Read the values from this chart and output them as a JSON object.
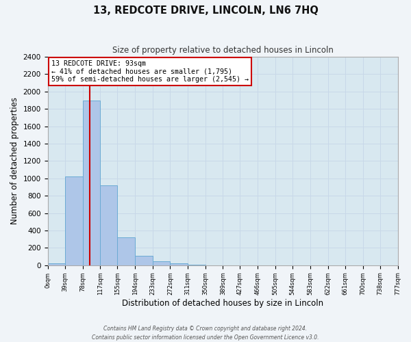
{
  "title": "13, REDCOTE DRIVE, LINCOLN, LN6 7HQ",
  "subtitle": "Size of property relative to detached houses in Lincoln",
  "xlabel": "Distribution of detached houses by size in Lincoln",
  "ylabel": "Number of detached properties",
  "bin_edges": [
    0,
    39,
    78,
    117,
    155,
    194,
    233,
    272,
    311,
    350,
    389,
    427,
    466,
    505,
    544,
    583,
    622,
    661,
    700,
    738,
    777
  ],
  "bin_labels": [
    "0sqm",
    "39sqm",
    "78sqm",
    "117sqm",
    "155sqm",
    "194sqm",
    "233sqm",
    "272sqm",
    "311sqm",
    "350sqm",
    "389sqm",
    "427sqm",
    "466sqm",
    "505sqm",
    "544sqm",
    "583sqm",
    "622sqm",
    "661sqm",
    "700sqm",
    "738sqm",
    "777sqm"
  ],
  "bar_heights": [
    20,
    1020,
    1900,
    920,
    320,
    105,
    45,
    20,
    5,
    0,
    0,
    0,
    0,
    0,
    0,
    0,
    0,
    0,
    0,
    0
  ],
  "bar_color": "#aec6e8",
  "bar_edge_color": "#6aaad4",
  "property_line_x": 93,
  "property_line_color": "#cc0000",
  "annotation_title": "13 REDCOTE DRIVE: 93sqm",
  "annotation_line1": "← 41% of detached houses are smaller (1,795)",
  "annotation_line2": "59% of semi-detached houses are larger (2,545) →",
  "annotation_box_facecolor": "#ffffff",
  "annotation_box_edgecolor": "#cc0000",
  "ylim": [
    0,
    2400
  ],
  "yticks": [
    0,
    200,
    400,
    600,
    800,
    1000,
    1200,
    1400,
    1600,
    1800,
    2000,
    2200,
    2400
  ],
  "xlim": [
    0,
    777
  ],
  "grid_color": "#c8d8e8",
  "ax_background_color": "#d8e8f0",
  "fig_background_color": "#f0f4f8",
  "footer_line1": "Contains HM Land Registry data © Crown copyright and database right 2024.",
  "footer_line2": "Contains public sector information licensed under the Open Government Licence v3.0."
}
